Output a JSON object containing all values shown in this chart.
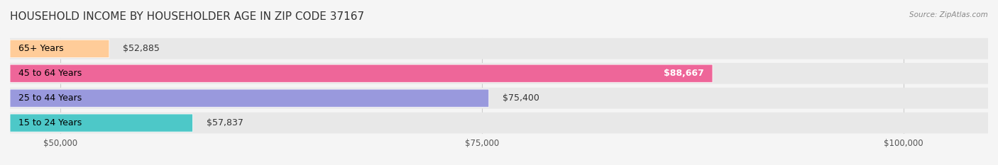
{
  "title": "HOUSEHOLD INCOME BY HOUSEHOLDER AGE IN ZIP CODE 37167",
  "source": "Source: ZipAtlas.com",
  "categories": [
    "15 to 24 Years",
    "25 to 44 Years",
    "45 to 64 Years",
    "65+ Years"
  ],
  "values": [
    57837,
    75400,
    88667,
    52885
  ],
  "bar_colors": [
    "#4DC8C8",
    "#9999DD",
    "#EE6699",
    "#FFCC99"
  ],
  "bar_edge_colors": [
    "#3AB8B8",
    "#8888CC",
    "#DD5588",
    "#FFBB88"
  ],
  "bg_color": "#f5f5f5",
  "bar_bg_color": "#f0f0f0",
  "value_labels": [
    "$57,837",
    "$75,400",
    "$88,667",
    "$52,885"
  ],
  "x_ticks": [
    50000,
    75000,
    100000
  ],
  "x_tick_labels": [
    "$50,000",
    "$75,000",
    "$100,000"
  ],
  "xlim_min": 47000,
  "xlim_max": 105000,
  "label_fontsize": 9,
  "value_fontsize": 9,
  "title_fontsize": 11
}
